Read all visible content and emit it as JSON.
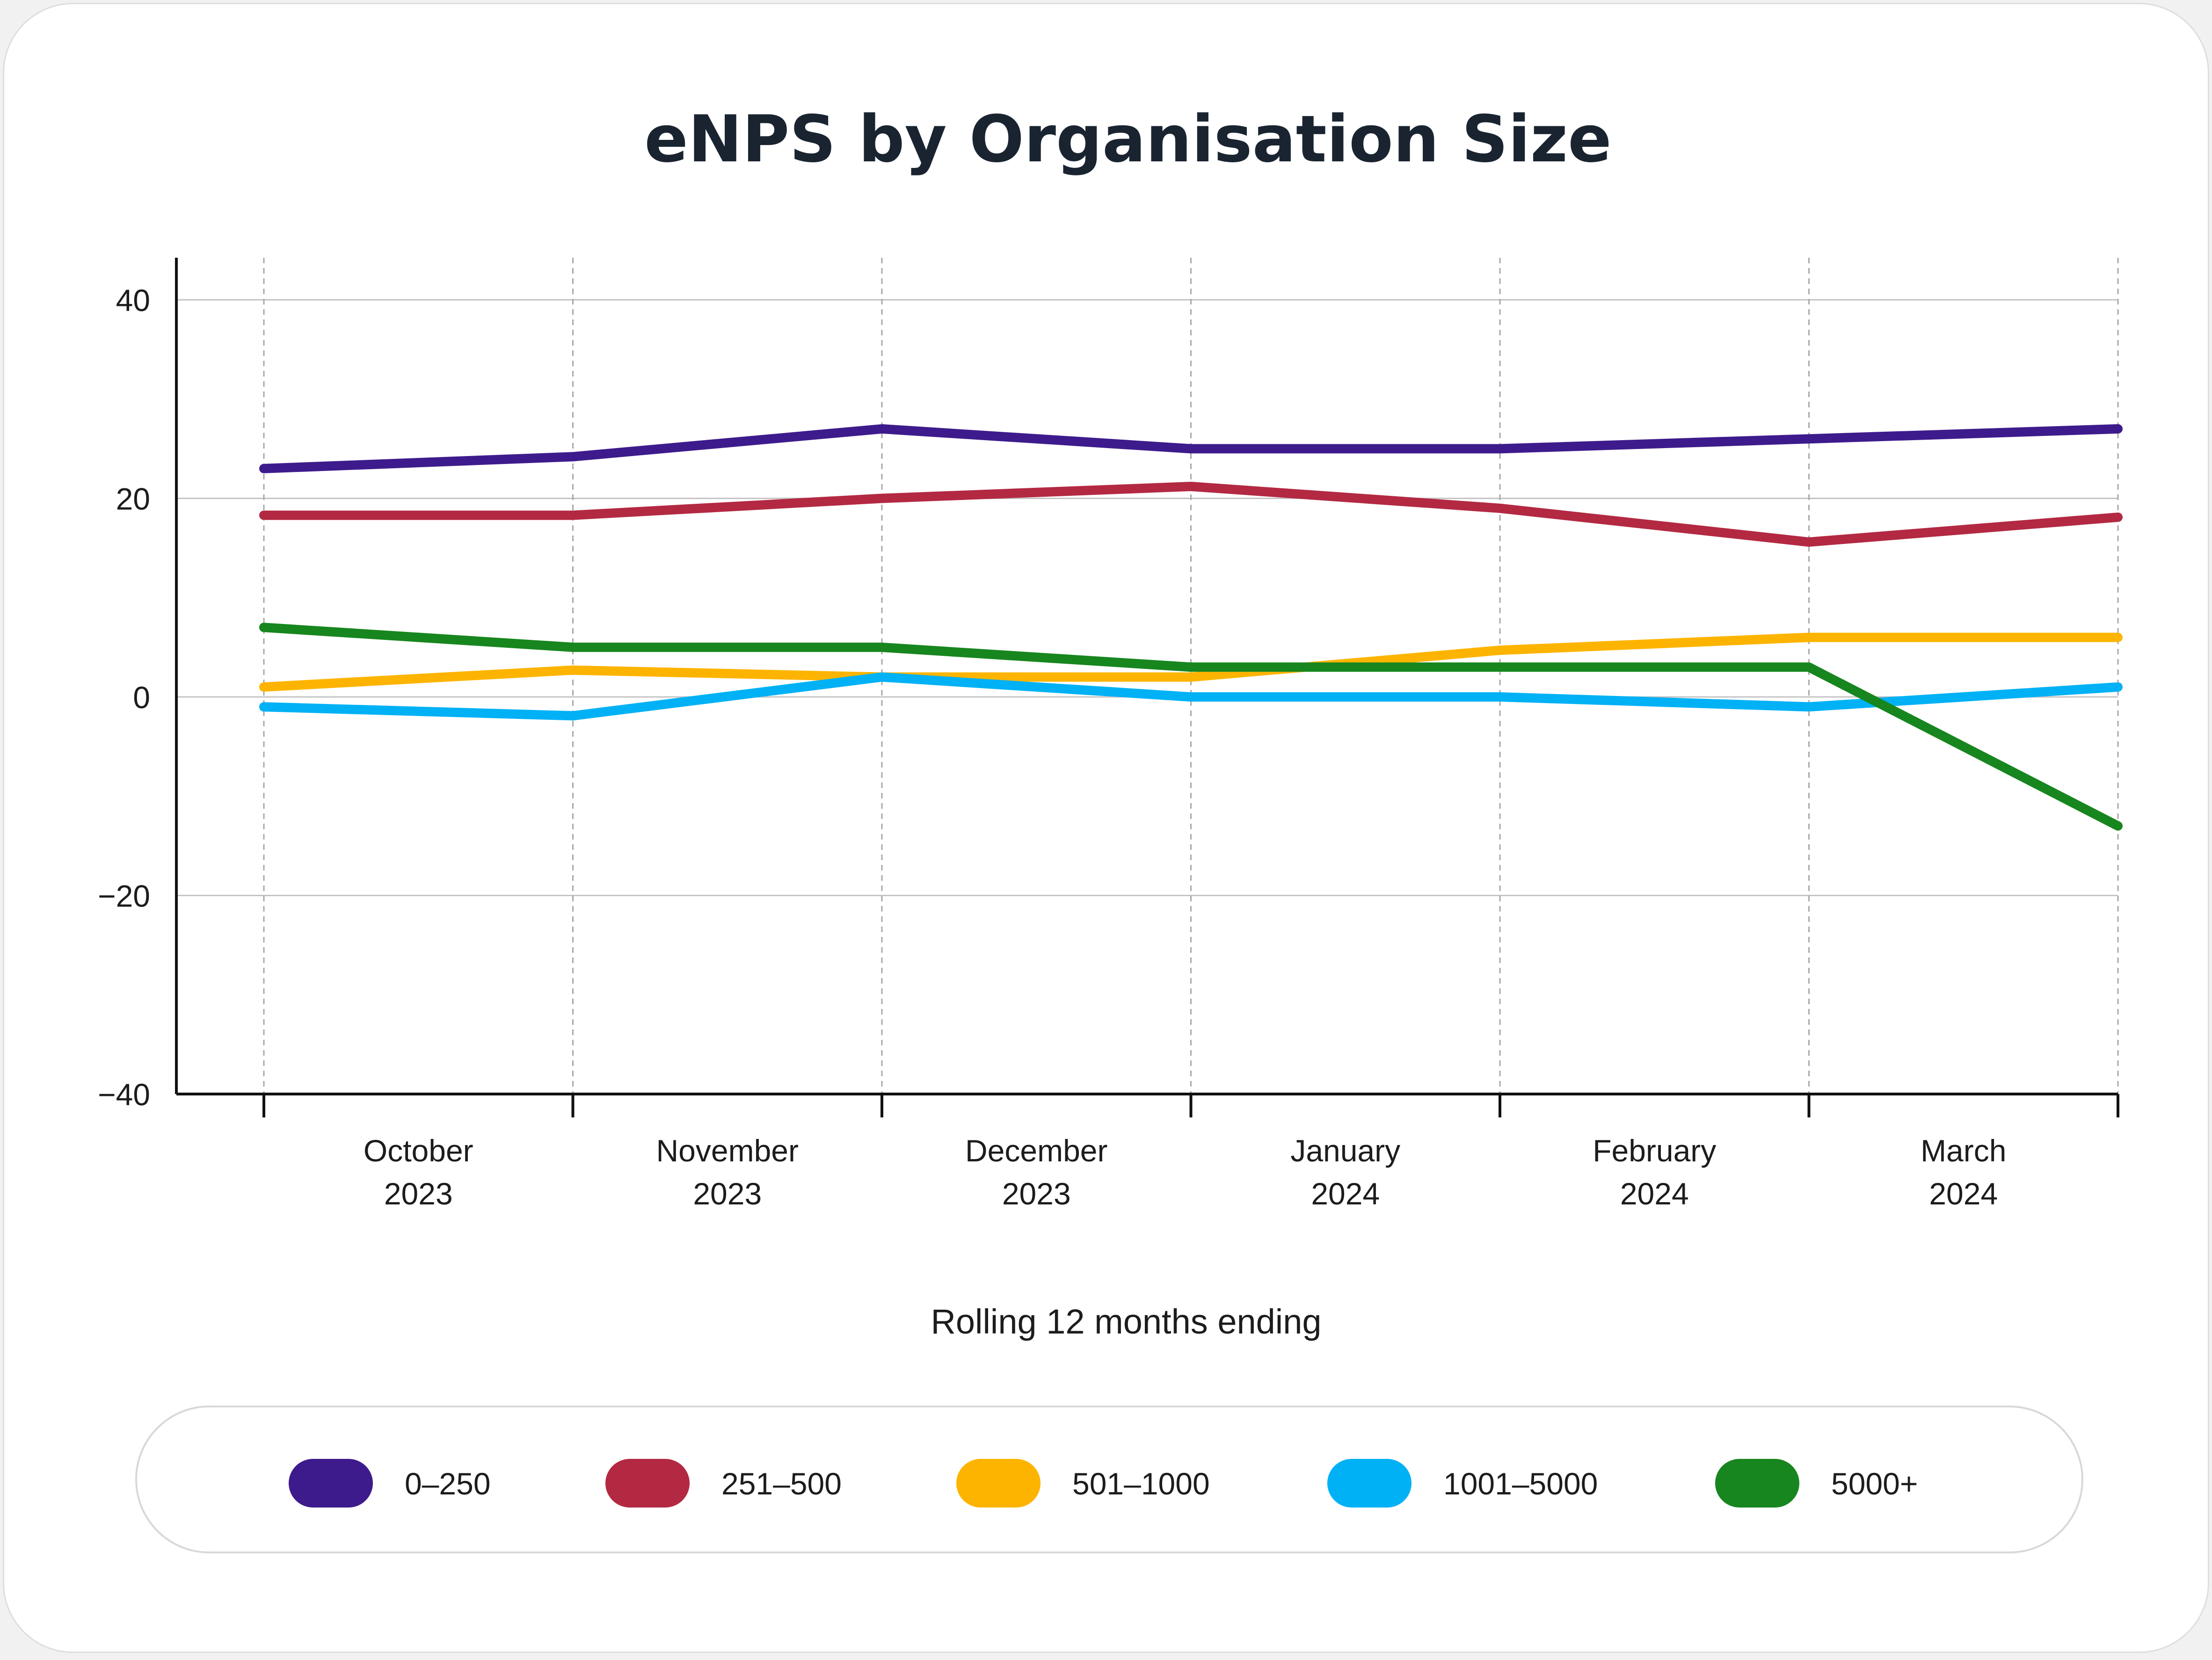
{
  "chart_data": {
    "type": "line",
    "title": "eNPS by Organisation Size",
    "xlabel": "Rolling 12 months ending",
    "ylabel": "",
    "ylim": [
      -40,
      40
    ],
    "yticks": [
      40,
      20,
      0,
      -20,
      -40
    ],
    "grid": true,
    "legend_position": "bottom",
    "x_tick_labels": [
      {
        "line1": "October",
        "line2": "2023"
      },
      {
        "line1": "November",
        "line2": "2023"
      },
      {
        "line1": "December",
        "line2": "2023"
      },
      {
        "line1": "January",
        "line2": "2024"
      },
      {
        "line1": "February",
        "line2": "2024"
      },
      {
        "line1": "March",
        "line2": "2024"
      }
    ],
    "x_points": 7,
    "series": [
      {
        "name": "0–250",
        "color": "#3e1b8c",
        "values": [
          23,
          24.2,
          27,
          25,
          25,
          26,
          27
        ]
      },
      {
        "name": "251–500",
        "color": "#b32942",
        "values": [
          18.3,
          18.3,
          20,
          21.2,
          19,
          15.6,
          18.1
        ]
      },
      {
        "name": "501–1000",
        "color": "#fdb400",
        "values": [
          1,
          2.7,
          2,
          2,
          4.7,
          6,
          6
        ]
      },
      {
        "name": "1001–5000",
        "color": "#00b1f5",
        "values": [
          -1,
          -1.9,
          2,
          0,
          0,
          -1,
          1
        ]
      },
      {
        "name": "5000+",
        "color": "#17861e",
        "values": [
          7,
          5,
          5,
          3,
          3,
          3,
          -13
        ]
      }
    ]
  }
}
